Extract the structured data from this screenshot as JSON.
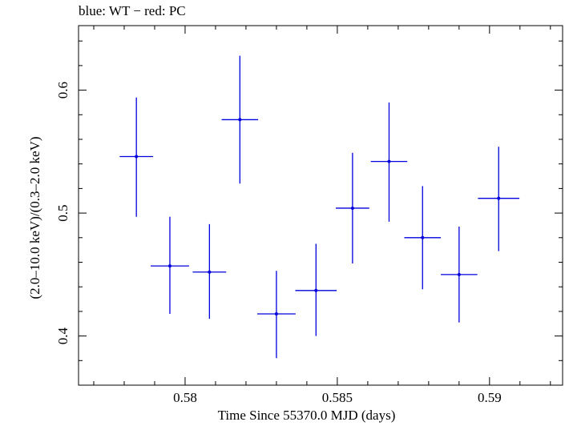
{
  "chart_data": {
    "type": "scatter",
    "title": "blue: WT − red: PC",
    "xlabel": "Time Since 55370.0 MJD (days)",
    "ylabel": "(2.0–10.0 keV)/(0.3–2.0 keV)",
    "xlim": [
      0.5765,
      0.5924
    ],
    "ylim": [
      0.36,
      0.6525
    ],
    "xticks": [
      0.58,
      0.585,
      0.59
    ],
    "xtick_labels": [
      "0.58",
      "0.585",
      "0.59"
    ],
    "yticks": [
      0.4,
      0.5,
      0.6
    ],
    "ytick_labels": [
      "0.4",
      "0.5",
      "0.6"
    ],
    "grid": false,
    "series": [
      {
        "color": "#0000dd",
        "points": [
          {
            "x": 0.5784,
            "y": 0.546,
            "xerr": 0.00055,
            "ylo": 0.497,
            "yhi": 0.594
          },
          {
            "x": 0.5795,
            "y": 0.457,
            "xerr": 0.00063,
            "ylo": 0.418,
            "yhi": 0.497
          },
          {
            "x": 0.5808,
            "y": 0.452,
            "xerr": 0.00055,
            "ylo": 0.414,
            "yhi": 0.491
          },
          {
            "x": 0.5818,
            "y": 0.576,
            "xerr": 0.0006,
            "ylo": 0.524,
            "yhi": 0.628
          },
          {
            "x": 0.583,
            "y": 0.418,
            "xerr": 0.00063,
            "ylo": 0.382,
            "yhi": 0.453
          },
          {
            "x": 0.5843,
            "y": 0.437,
            "xerr": 0.00068,
            "ylo": 0.4,
            "yhi": 0.475
          },
          {
            "x": 0.5855,
            "y": 0.504,
            "xerr": 0.00055,
            "ylo": 0.459,
            "yhi": 0.549
          },
          {
            "x": 0.5867,
            "y": 0.542,
            "xerr": 0.0006,
            "ylo": 0.493,
            "yhi": 0.59
          },
          {
            "x": 0.5878,
            "y": 0.48,
            "xerr": 0.0006,
            "ylo": 0.438,
            "yhi": 0.522
          },
          {
            "x": 0.589,
            "y": 0.45,
            "xerr": 0.0006,
            "ylo": 0.411,
            "yhi": 0.489
          },
          {
            "x": 0.5903,
            "y": 0.512,
            "xerr": 0.00068,
            "ylo": 0.469,
            "yhi": 0.554
          }
        ]
      }
    ]
  }
}
